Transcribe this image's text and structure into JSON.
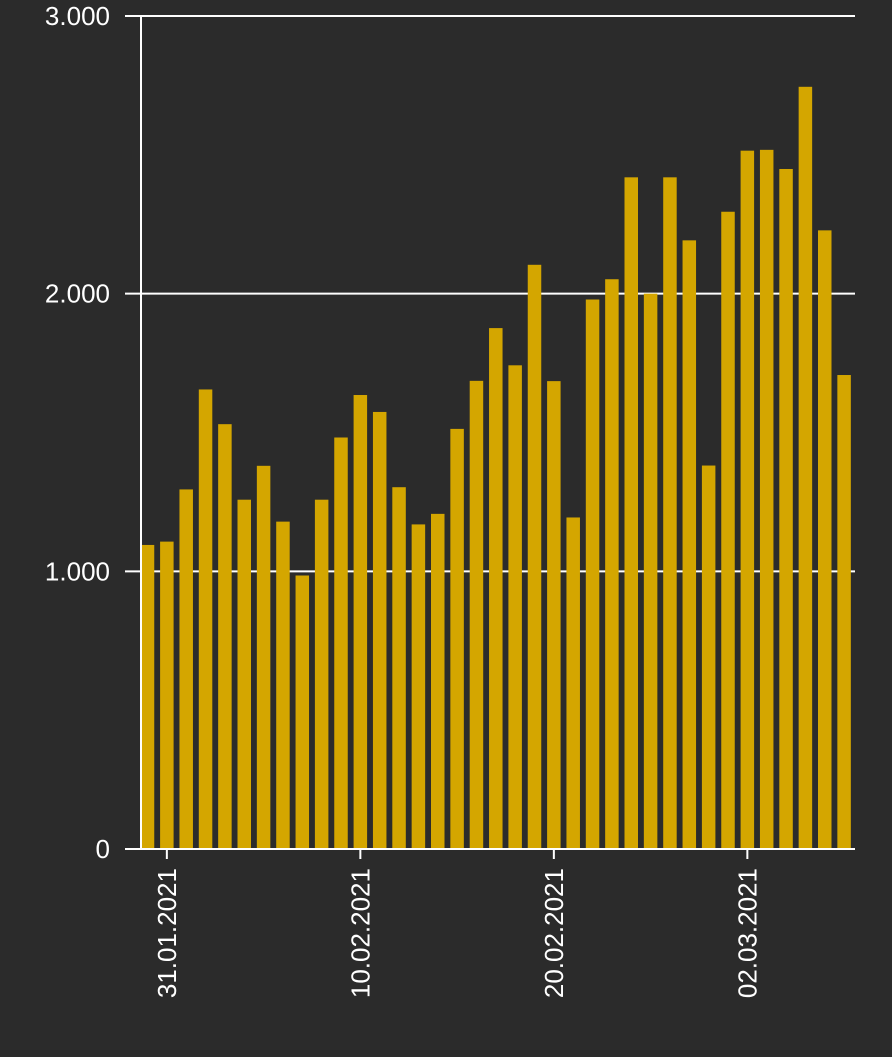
{
  "chart_data": {
    "type": "bar",
    "title": "",
    "xlabel": "",
    "ylabel": "",
    "ylim": [
      0,
      3000
    ],
    "grid": true,
    "colors": {
      "background": "#2b2b2b",
      "bar": "#d4a600",
      "axis": "#ffffff",
      "text": "#ffffff"
    },
    "y_ticks": [
      {
        "value": 0,
        "label": "0"
      },
      {
        "value": 1000,
        "label": "1.000"
      },
      {
        "value": 2000,
        "label": "2.000"
      },
      {
        "value": 3000,
        "label": "3.000"
      }
    ],
    "x_ticks": [
      {
        "x": "31.01.2021",
        "label": "31.01.2021"
      },
      {
        "x": "10.02.2021",
        "label": "10.02.2021"
      },
      {
        "x": "20.02.2021",
        "label": "20.02.2021"
      },
      {
        "x": "02.03.2021",
        "label": "02.03.2021"
      }
    ],
    "series": [
      {
        "x": [
          "30.01.2021",
          "31.01.2021",
          "01.02.2021",
          "02.02.2021",
          "03.02.2021",
          "04.02.2021",
          "05.02.2021",
          "06.02.2021",
          "07.02.2021",
          "08.02.2021",
          "09.02.2021",
          "10.02.2021",
          "11.02.2021",
          "12.02.2021",
          "13.02.2021",
          "14.02.2021",
          "15.02.2021",
          "16.02.2021",
          "17.02.2021",
          "18.02.2021",
          "19.02.2021",
          "20.02.2021",
          "21.02.2021",
          "22.02.2021",
          "23.02.2021",
          "24.02.2021",
          "25.02.2021",
          "26.02.2021",
          "27.02.2021",
          "28.02.2021",
          "01.03.2021",
          "02.03.2021",
          "03.03.2021",
          "04.03.2021",
          "05.03.2021",
          "06.03.2021",
          "07.03.2021",
          "08.03.2021"
        ],
        "values": [
          1095,
          1107,
          1295,
          1655,
          1530,
          1258,
          1380,
          1179,
          985,
          1258,
          1482,
          1635,
          1574,
          1303,
          1169,
          1207,
          1513,
          1686,
          1876,
          1742,
          2104,
          1685,
          1194,
          1979,
          2052,
          2419,
          2000,
          2419,
          2192,
          1381,
          2295,
          2515,
          2518,
          2449,
          2745,
          2228,
          1707,
          0
        ]
      }
    ]
  }
}
